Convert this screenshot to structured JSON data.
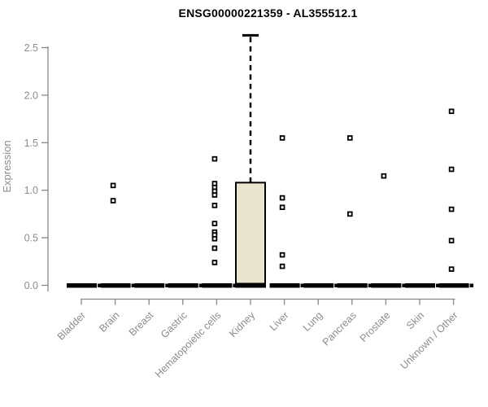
{
  "page": {
    "title": "ENSG00000221359 - AL355512.1"
  },
  "chart_data": {
    "type": "boxplot",
    "title": "ENSG00000221359 - AL355512.1",
    "xlabel": "",
    "ylabel": "Expression",
    "ylim": [
      -0.07,
      2.72
    ],
    "yticks": [
      0.0,
      0.5,
      1.0,
      1.5,
      2.0,
      2.5
    ],
    "grid": false,
    "legend": "none",
    "categories": [
      "Bladder",
      "Brain",
      "Breast",
      "Gastric",
      "Hematopoietic cells",
      "Kidney",
      "Liver",
      "Lung",
      "Pancreas",
      "Prostate",
      "Skin",
      "Unknown / Other"
    ],
    "boxes": [
      {
        "category": "Bladder",
        "q1": 0,
        "median": 0,
        "q3": 0,
        "whisker_low": 0,
        "whisker_high": 0,
        "outliers": []
      },
      {
        "category": "Brain",
        "q1": 0,
        "median": 0,
        "q3": 0,
        "whisker_low": 0,
        "whisker_high": 0,
        "outliers": [
          1.05,
          0.89
        ]
      },
      {
        "category": "Breast",
        "q1": 0,
        "median": 0,
        "q3": 0,
        "whisker_low": 0,
        "whisker_high": 0,
        "outliers": []
      },
      {
        "category": "Gastric",
        "q1": 0,
        "median": 0,
        "q3": 0,
        "whisker_low": 0,
        "whisker_high": 0,
        "outliers": []
      },
      {
        "category": "Hematopoietic cells",
        "q1": 0,
        "median": 0,
        "q3": 0,
        "whisker_low": 0,
        "whisker_high": 0,
        "outliers": [
          1.33,
          1.07,
          1.03,
          0.99,
          0.95,
          0.84,
          0.65,
          0.56,
          0.53,
          0.49,
          0.39,
          0.24
        ]
      },
      {
        "category": "Kidney",
        "q1": 0,
        "median": 0.01,
        "q3": 1.08,
        "whisker_low": 0,
        "whisker_high": 2.63,
        "outliers": []
      },
      {
        "category": "Liver",
        "q1": 0,
        "median": 0,
        "q3": 0,
        "whisker_low": 0,
        "whisker_high": 0,
        "outliers": [
          1.55,
          0.92,
          0.82,
          0.32,
          0.2
        ]
      },
      {
        "category": "Lung",
        "q1": 0,
        "median": 0,
        "q3": 0,
        "whisker_low": 0,
        "whisker_high": 0,
        "outliers": []
      },
      {
        "category": "Pancreas",
        "q1": 0,
        "median": 0,
        "q3": 0,
        "whisker_low": 0,
        "whisker_high": 0,
        "outliers": [
          1.55,
          0.75
        ]
      },
      {
        "category": "Prostate",
        "q1": 0,
        "median": 0,
        "q3": 0,
        "whisker_low": 0,
        "whisker_high": 0,
        "outliers": [
          1.15
        ]
      },
      {
        "category": "Skin",
        "q1": 0,
        "median": 0,
        "q3": 0,
        "whisker_low": 0,
        "whisker_high": 0,
        "outliers": []
      },
      {
        "category": "Unknown / Other",
        "q1": 0,
        "median": 0,
        "q3": 0,
        "whisker_low": 0,
        "whisker_high": 0,
        "outliers": [
          1.83,
          1.22,
          0.8,
          0.47,
          0.17
        ]
      }
    ],
    "colors": {
      "box_fill": "#EAE5CE",
      "box_border": "#000000",
      "median": "#000000",
      "whisker": "#000000",
      "outlier": "#000000",
      "axis": "#888888",
      "tick_text": "#8C8C8C",
      "title_text": "#000000"
    }
  }
}
